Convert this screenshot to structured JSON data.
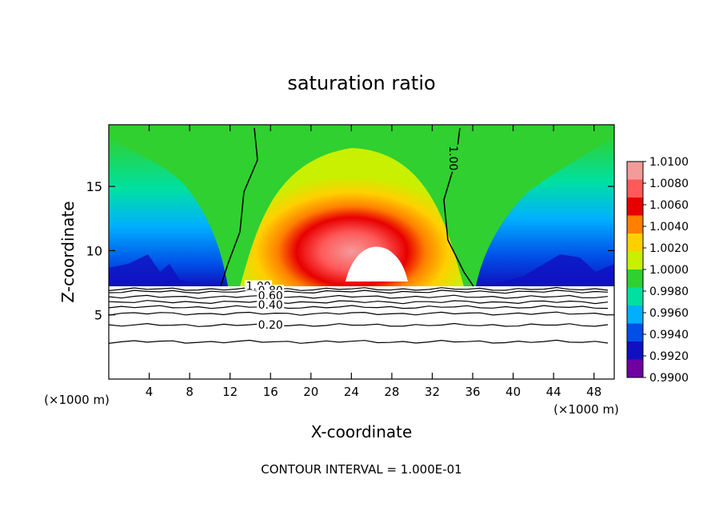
{
  "chart_data": {
    "type": "heatmap",
    "title": "saturation ratio",
    "xlabel": "X-coordinate",
    "ylabel": "Z-coordinate",
    "x_unit_label": "(×1000 m)",
    "x_unit_label_right": "(×1000 m)",
    "footer": "CONTOUR INTERVAL = 1.000E-01",
    "xlim": [
      0,
      50
    ],
    "ylim": [
      0,
      19.8
    ],
    "xticks": [
      4,
      8,
      12,
      16,
      20,
      24,
      28,
      32,
      36,
      40,
      44,
      48
    ],
    "yticks": [
      5,
      10,
      15
    ],
    "colorbar": {
      "levels": [
        "1.0100",
        "1.0080",
        "1.0060",
        "1.0040",
        "1.0020",
        "1.0000",
        "0.9980",
        "0.9960",
        "0.9940",
        "0.9920",
        "0.9900"
      ],
      "colors": [
        "#f39a9a",
        "#ff5a5a",
        "#e80000",
        "#ff8000",
        "#ffd000",
        "#c8f000",
        "#30d030",
        "#00e0a0",
        "#00b0ff",
        "#0050e8",
        "#1010c0",
        "#7000a0"
      ]
    },
    "contour_labels": [
      "1.00",
      "1.00",
      "0.60",
      "0.80",
      "0.40",
      "0.20"
    ],
    "contour_lines_z": [
      2.9,
      4.2,
      5.1,
      5.6,
      6.0,
      6.4,
      6.8,
      7.0
    ],
    "contour_label_positions": [
      {
        "text": "1.00",
        "x": 14.8,
        "z": 7.0
      },
      {
        "text": "0.80",
        "x": 16.0,
        "z": 6.65
      },
      {
        "text": "0.60",
        "x": 16.0,
        "z": 6.25
      },
      {
        "text": "0.40",
        "x": 16.0,
        "z": 5.55
      },
      {
        "text": "0.20",
        "x": 16.0,
        "z": 4.0
      },
      {
        "text": "1.00",
        "x": 34.1,
        "z": 17.2
      }
    ]
  }
}
